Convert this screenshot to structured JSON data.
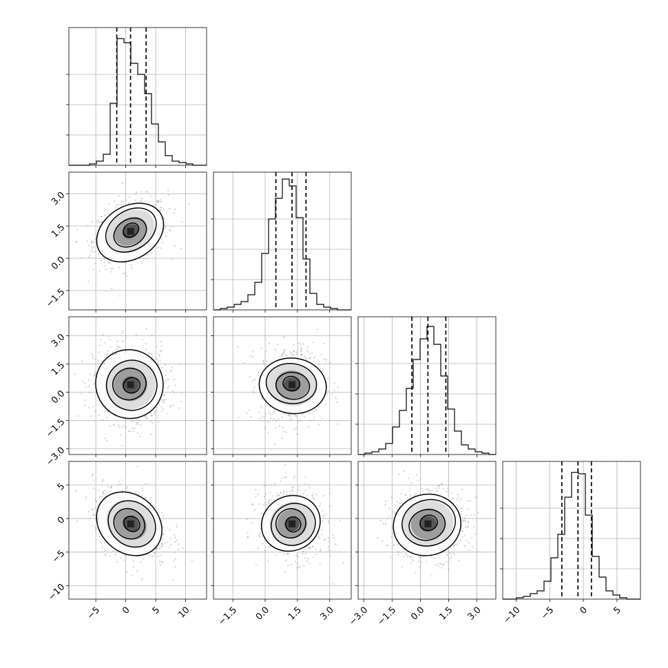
{
  "chart_data": {
    "type": "corner",
    "title": "",
    "n_params": 4,
    "grid": true,
    "colors": {
      "hist": "#000000",
      "quantile": "#000000",
      "grid": "#b0b0b0",
      "points": "#9a9a9a",
      "density_dark": "#222222"
    },
    "params": [
      {
        "range": [
          -9.5,
          13.5
        ],
        "ticks": [
          -5,
          0,
          5,
          10
        ],
        "tick_labels": [
          "−5",
          "0",
          "5",
          "10"
        ],
        "quantiles": [
          -1.5,
          0.8,
          3.4
        ],
        "center": 0.8,
        "sigma": 2.7,
        "hist": [
          0,
          0,
          0,
          0.01,
          0.03,
          0.08,
          0.45,
          0.92,
          0.89,
          0.74,
          0.66,
          0.52,
          0.3,
          0.17,
          0.07,
          0.03,
          0.02,
          0.01,
          0,
          0
        ]
      },
      {
        "range": [
          -2.4,
          4.0
        ],
        "ticks": [
          -1.5,
          0.0,
          1.5,
          3.0
        ],
        "tick_labels": [
          "−1.5",
          "0.0",
          "1.5",
          "3.0"
        ],
        "quantiles": [
          0.5,
          1.25,
          1.9
        ],
        "center": 1.25,
        "sigma": 0.65,
        "hist": [
          0,
          0.01,
          0.02,
          0.04,
          0.06,
          0.11,
          0.2,
          0.41,
          0.66,
          0.81,
          0.95,
          0.9,
          0.67,
          0.37,
          0.12,
          0.04,
          0.02,
          0.01,
          0,
          0
        ]
      },
      {
        "range": [
          -3.3,
          4.0
        ],
        "ticks": [
          -3.0,
          -1.5,
          0.0,
          1.5,
          3.0
        ],
        "tick_labels": [
          "−3.0",
          "−1.5",
          "0.0",
          "1.5",
          "3.0"
        ],
        "quantiles": [
          -0.45,
          0.4,
          1.35
        ],
        "center": 0.4,
        "sigma": 0.9,
        "hist": [
          0,
          0.01,
          0.02,
          0.04,
          0.08,
          0.2,
          0.32,
          0.48,
          0.69,
          0.84,
          0.93,
          0.8,
          0.57,
          0.33,
          0.17,
          0.07,
          0.04,
          0.02,
          0.01,
          0
        ]
      },
      {
        "range": [
          -12.0,
          8.5
        ],
        "ticks": [
          -10,
          -5,
          0,
          5
        ],
        "tick_labels": [
          "−10",
          "−5",
          "0",
          "5"
        ],
        "quantiles": [
          -3.2,
          -0.8,
          1.2
        ],
        "center": -0.8,
        "sigma": 2.3,
        "hist": [
          0,
          0,
          0.01,
          0.02,
          0.04,
          0.06,
          0.13,
          0.3,
          0.47,
          0.74,
          0.92,
          0.91,
          0.61,
          0.31,
          0.16,
          0.06,
          0.03,
          0.01,
          0,
          0
        ]
      }
    ],
    "y_axes": [
      {
        "row": 1,
        "ticks": [
          -1.5,
          0.0,
          1.5,
          3.0
        ],
        "tick_labels": [
          "−1.5",
          "0.0",
          "1.5",
          "3.0"
        ]
      },
      {
        "row": 2,
        "ticks": [
          -3.0,
          -1.5,
          0.0,
          1.5,
          3.0
        ],
        "tick_labels": [
          "−3.0",
          "−1.5",
          "0.0",
          "1.5",
          "3.0"
        ]
      },
      {
        "row": 3,
        "ticks": [
          -10,
          -5,
          0,
          5
        ],
        "tick_labels": [
          "−10",
          "−5",
          "0",
          "5"
        ]
      }
    ],
    "correlations": [
      {
        "x_param": 0,
        "y_param": 1,
        "rho": 0.3
      },
      {
        "x_param": 0,
        "y_param": 2,
        "rho": -0.05
      },
      {
        "x_param": 1,
        "y_param": 2,
        "rho": 0.05
      },
      {
        "x_param": 0,
        "y_param": 3,
        "rho": -0.35
      },
      {
        "x_param": 1,
        "y_param": 3,
        "rho": -0.15
      },
      {
        "x_param": 2,
        "y_param": 3,
        "rho": 0.05
      }
    ]
  }
}
